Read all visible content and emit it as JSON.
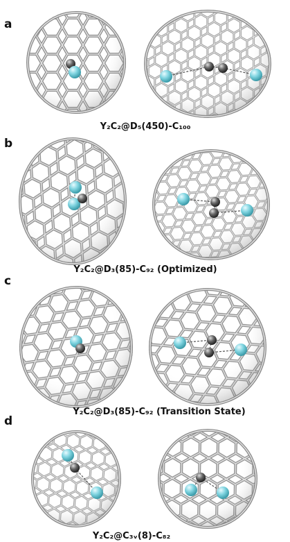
{
  "panels": [
    {
      "label": "a",
      "caption": "Y₂C₂@D₅(450)-C₁₀₀"
    },
    {
      "label": "b",
      "caption": "Y₂C₂@D₃(85)-C₉₂ (Optimized)"
    },
    {
      "label": "c",
      "caption": "Y₂C₂@D₃(85)-C₉₂ (Transition State)"
    },
    {
      "label": "d",
      "caption": "Y₂C₂@C₃ᵥ(8)-C₈₂"
    }
  ]
}
